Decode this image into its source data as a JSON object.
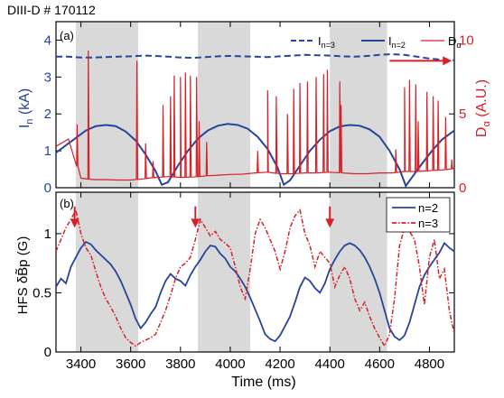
{
  "figure": {
    "shot_title": "DIII-D # 170112",
    "colors": {
      "blue": "#27449a",
      "red": "#d72027",
      "shade": "#d9d9d9",
      "axis": "#000000"
    }
  },
  "chart_data": [
    {
      "panel_label": "(a)",
      "type": "line",
      "xlim": [
        3300,
        4900
      ],
      "xlabel": "",
      "ylabel_left": "I",
      "ylabel_left_sub": "n",
      "ylabel_left_unit": " (kA)",
      "ylabel_right": "D",
      "ylabel_right_sub": "α",
      "ylabel_right_unit": " (A.U.)",
      "ylim_left": [
        0,
        4.5
      ],
      "ylim_right": [
        0,
        11.25
      ],
      "yticks_left": [
        0,
        1,
        2,
        3,
        4
      ],
      "yticks_right": [
        0,
        5,
        10
      ],
      "shaded_intervals": [
        [
          3380,
          3630
        ],
        [
          3870,
          4080
        ],
        [
          4400,
          4630
        ]
      ],
      "legend": {
        "position": "top-right",
        "entries": [
          {
            "main": "I",
            "sub": "n=3",
            "style": "dashed",
            "color": "blue"
          },
          {
            "main": "I",
            "sub": "n=2",
            "style": "solid",
            "color": "blue"
          },
          {
            "main": "D",
            "sub": "α",
            "style": "solid",
            "color": "red"
          }
        ]
      },
      "annotation_arrow": {
        "direction": "right",
        "axis": "right",
        "color": "red",
        "x_from": 4640,
        "x_to": 4890,
        "y": 8.6
      },
      "series": [
        {
          "name": "In=3",
          "axis": "left",
          "style": "dashed",
          "color": "blue",
          "x": [
            3300,
            3350,
            3400,
            3450,
            3500,
            3550,
            3600,
            3650,
            3700,
            3750,
            3800,
            3850,
            3900,
            3950,
            4000,
            4050,
            4100,
            4150,
            4200,
            4250,
            4300,
            4350,
            4400,
            4450,
            4500,
            4550,
            4600,
            4650,
            4700,
            4750,
            4800,
            4850,
            4900
          ],
          "values": [
            3.55,
            3.55,
            3.53,
            3.53,
            3.54,
            3.55,
            3.56,
            3.58,
            3.57,
            3.55,
            3.53,
            3.52,
            3.54,
            3.56,
            3.57,
            3.56,
            3.55,
            3.54,
            3.56,
            3.58,
            3.6,
            3.59,
            3.58,
            3.56,
            3.55,
            3.57,
            3.6,
            3.62,
            3.6,
            3.55,
            3.5,
            3.47,
            3.45
          ]
        },
        {
          "name": "In=2",
          "axis": "left",
          "style": "solid",
          "color": "blue",
          "x": [
            3300,
            3340,
            3380,
            3420,
            3460,
            3500,
            3540,
            3580,
            3620,
            3660,
            3700,
            3725,
            3750,
            3790,
            3830,
            3870,
            3910,
            3950,
            3990,
            4030,
            4070,
            4110,
            4150,
            4190,
            4215,
            4240,
            4280,
            4320,
            4360,
            4400,
            4440,
            4480,
            4520,
            4560,
            4600,
            4640,
            4680,
            4705,
            4730,
            4770,
            4810,
            4850,
            4900
          ],
          "values": [
            0.95,
            1.15,
            1.35,
            1.55,
            1.67,
            1.7,
            1.67,
            1.52,
            1.28,
            0.9,
            0.45,
            0.08,
            0.15,
            0.6,
            1.0,
            1.33,
            1.55,
            1.68,
            1.73,
            1.7,
            1.6,
            1.38,
            1.05,
            0.55,
            0.08,
            0.2,
            0.6,
            1.0,
            1.3,
            1.53,
            1.66,
            1.7,
            1.68,
            1.58,
            1.38,
            1.0,
            0.5,
            0.05,
            0.28,
            0.65,
            1.0,
            1.3,
            1.55
          ]
        },
        {
          "name": "Dα",
          "axis": "right",
          "style": "solid",
          "color": "red",
          "baseline_x": [
            3300,
            3350,
            3400,
            3450,
            3500,
            3550,
            3600,
            3650,
            3700,
            3750,
            3800,
            3850,
            3900,
            3950,
            4000,
            4050,
            4100,
            4150,
            4200,
            4250,
            4300,
            4350,
            4400,
            4450,
            4500,
            4550,
            4600,
            4650,
            4700,
            4750,
            4800,
            4850,
            4900
          ],
          "baseline_values": [
            2.8,
            3.3,
            0.65,
            0.55,
            0.55,
            0.52,
            0.52,
            0.6,
            0.7,
            0.75,
            0.7,
            0.72,
            0.8,
            0.85,
            0.9,
            0.92,
            1.0,
            1.05,
            0.95,
            0.95,
            1.0,
            1.0,
            1.05,
            1.0,
            0.95,
            0.95,
            1.0,
            1.0,
            1.1,
            1.1,
            1.15,
            1.2,
            1.3
          ],
          "spikes": [
            {
              "x": 3385,
              "peak": 4.3
            },
            {
              "x": 3430,
              "peak": 9.3
            },
            {
              "x": 3625,
              "peak": 8.6
            },
            {
              "x": 3660,
              "peak": 3.0
            },
            {
              "x": 3690,
              "peak": 1.8
            },
            {
              "x": 3730,
              "peak": 5.6
            },
            {
              "x": 3760,
              "peak": 6.2
            },
            {
              "x": 3775,
              "peak": 7.6
            },
            {
              "x": 3800,
              "peak": 7.5
            },
            {
              "x": 3820,
              "peak": 7.8
            },
            {
              "x": 3840,
              "peak": 7.6
            },
            {
              "x": 3865,
              "peak": 7.5
            },
            {
              "x": 3875,
              "peak": 4.5
            },
            {
              "x": 3905,
              "peak": 3.1
            },
            {
              "x": 4110,
              "peak": 2.5
            },
            {
              "x": 4150,
              "peak": 6.6
            },
            {
              "x": 4185,
              "peak": 6.2
            },
            {
              "x": 4230,
              "peak": 5.0
            },
            {
              "x": 4255,
              "peak": 6.7
            },
            {
              "x": 4280,
              "peak": 7.1
            },
            {
              "x": 4310,
              "peak": 7.2
            },
            {
              "x": 4345,
              "peak": 7.5
            },
            {
              "x": 4375,
              "peak": 7.7
            },
            {
              "x": 4390,
              "peak": 8.0
            },
            {
              "x": 4440,
              "peak": 7.2
            },
            {
              "x": 4445,
              "peak": 5.6
            },
            {
              "x": 4665,
              "peak": 2.6
            },
            {
              "x": 4700,
              "peak": 6.8
            },
            {
              "x": 4720,
              "peak": 7.3
            },
            {
              "x": 4745,
              "peak": 7.0
            },
            {
              "x": 4755,
              "peak": 4.5
            },
            {
              "x": 4790,
              "peak": 6.5
            },
            {
              "x": 4815,
              "peak": 6.2
            },
            {
              "x": 4835,
              "peak": 5.9
            },
            {
              "x": 4865,
              "peak": 4.8
            },
            {
              "x": 4890,
              "peak": 1.9
            }
          ]
        }
      ]
    },
    {
      "panel_label": "(b)",
      "type": "line",
      "xlim": [
        3300,
        4900
      ],
      "xlabel": "Time (ms)",
      "xticks": [
        3400,
        3600,
        3800,
        4000,
        4200,
        4400,
        4600,
        4800
      ],
      "ylabel_left": "HFS δB̃p (G)",
      "ylim_left": [
        0,
        1.35
      ],
      "yticks_left": [
        0,
        0.5,
        1
      ],
      "shaded_intervals": [
        [
          3380,
          3630
        ],
        [
          3870,
          4080
        ],
        [
          4400,
          4630
        ]
      ],
      "legend": {
        "position": "top-right",
        "entries": [
          {
            "main": "n=2",
            "style": "solid",
            "color": "blue"
          },
          {
            "main": "n=3",
            "style": "dashdot",
            "color": "red"
          }
        ]
      },
      "event_arrows": {
        "x": [
          3375,
          3860,
          4400
        ],
        "y_from": 1.23,
        "y_to": 1.05,
        "color": "red"
      },
      "series": [
        {
          "name": "n=2",
          "style": "solid",
          "color": "blue",
          "x": [
            3300,
            3320,
            3340,
            3360,
            3380,
            3400,
            3420,
            3440,
            3460,
            3480,
            3500,
            3520,
            3540,
            3560,
            3580,
            3600,
            3620,
            3640,
            3660,
            3680,
            3700,
            3720,
            3740,
            3760,
            3780,
            3800,
            3820,
            3840,
            3860,
            3880,
            3900,
            3920,
            3940,
            3960,
            3980,
            4000,
            4020,
            4040,
            4060,
            4080,
            4100,
            4120,
            4140,
            4160,
            4180,
            4200,
            4220,
            4240,
            4260,
            4280,
            4300,
            4320,
            4340,
            4360,
            4380,
            4400,
            4420,
            4440,
            4460,
            4480,
            4500,
            4520,
            4540,
            4560,
            4580,
            4600,
            4620,
            4640,
            4660,
            4680,
            4700,
            4720,
            4740,
            4760,
            4780,
            4800,
            4820,
            4840,
            4860,
            4880,
            4900
          ],
          "values": [
            0.55,
            0.62,
            0.58,
            0.72,
            0.8,
            0.88,
            0.93,
            0.91,
            0.86,
            0.82,
            0.78,
            0.74,
            0.68,
            0.6,
            0.5,
            0.4,
            0.28,
            0.2,
            0.25,
            0.32,
            0.38,
            0.5,
            0.6,
            0.66,
            0.62,
            0.6,
            0.56,
            0.65,
            0.72,
            0.78,
            0.85,
            0.9,
            0.89,
            0.83,
            0.79,
            0.72,
            0.68,
            0.62,
            0.55,
            0.46,
            0.36,
            0.26,
            0.15,
            0.11,
            0.09,
            0.14,
            0.22,
            0.3,
            0.42,
            0.55,
            0.63,
            0.6,
            0.54,
            0.5,
            0.58,
            0.7,
            0.78,
            0.85,
            0.9,
            0.92,
            0.9,
            0.86,
            0.8,
            0.72,
            0.62,
            0.5,
            0.35,
            0.2,
            0.13,
            0.1,
            0.14,
            0.25,
            0.4,
            0.55,
            0.65,
            0.72,
            0.78,
            0.84,
            0.92,
            0.88,
            0.85
          ]
        },
        {
          "name": "n=3",
          "style": "dashdot",
          "color": "red",
          "x": [
            3300,
            3320,
            3340,
            3360,
            3380,
            3400,
            3420,
            3440,
            3460,
            3480,
            3500,
            3520,
            3540,
            3560,
            3580,
            3600,
            3620,
            3640,
            3660,
            3680,
            3700,
            3720,
            3740,
            3760,
            3780,
            3800,
            3820,
            3840,
            3860,
            3880,
            3900,
            3920,
            3940,
            3960,
            3980,
            4000,
            4020,
            4040,
            4060,
            4080,
            4100,
            4120,
            4140,
            4160,
            4180,
            4200,
            4220,
            4240,
            4260,
            4280,
            4300,
            4320,
            4340,
            4360,
            4380,
            4400,
            4420,
            4440,
            4460,
            4480,
            4500,
            4520,
            4540,
            4560,
            4580,
            4600,
            4620,
            4640,
            4660,
            4680,
            4700,
            4720,
            4740,
            4760,
            4780,
            4800,
            4820,
            4840,
            4860,
            4880,
            4900
          ],
          "values": [
            0.85,
            0.95,
            1.05,
            1.12,
            1.2,
            1.0,
            0.88,
            0.82,
            0.68,
            0.55,
            0.45,
            0.38,
            0.3,
            0.2,
            0.12,
            0.08,
            0.05,
            0.08,
            0.1,
            0.12,
            0.15,
            0.25,
            0.35,
            0.48,
            0.62,
            0.72,
            0.75,
            0.8,
            0.95,
            1.12,
            1.05,
            0.98,
            1.02,
            0.95,
            0.92,
            0.88,
            0.72,
            0.55,
            0.45,
            0.7,
            1.0,
            1.12,
            1.05,
            0.95,
            0.85,
            0.7,
            0.85,
            1.05,
            1.15,
            1.2,
            1.0,
            0.9,
            0.72,
            0.85,
            0.8,
            0.75,
            0.55,
            0.65,
            0.72,
            0.62,
            0.45,
            0.35,
            0.42,
            0.3,
            0.2,
            0.12,
            0.05,
            0.15,
            0.45,
            0.9,
            1.05,
            1.02,
            0.95,
            0.72,
            0.4,
            0.8,
            0.95,
            0.62,
            0.7,
            0.35,
            0.15
          ]
        }
      ]
    }
  ]
}
